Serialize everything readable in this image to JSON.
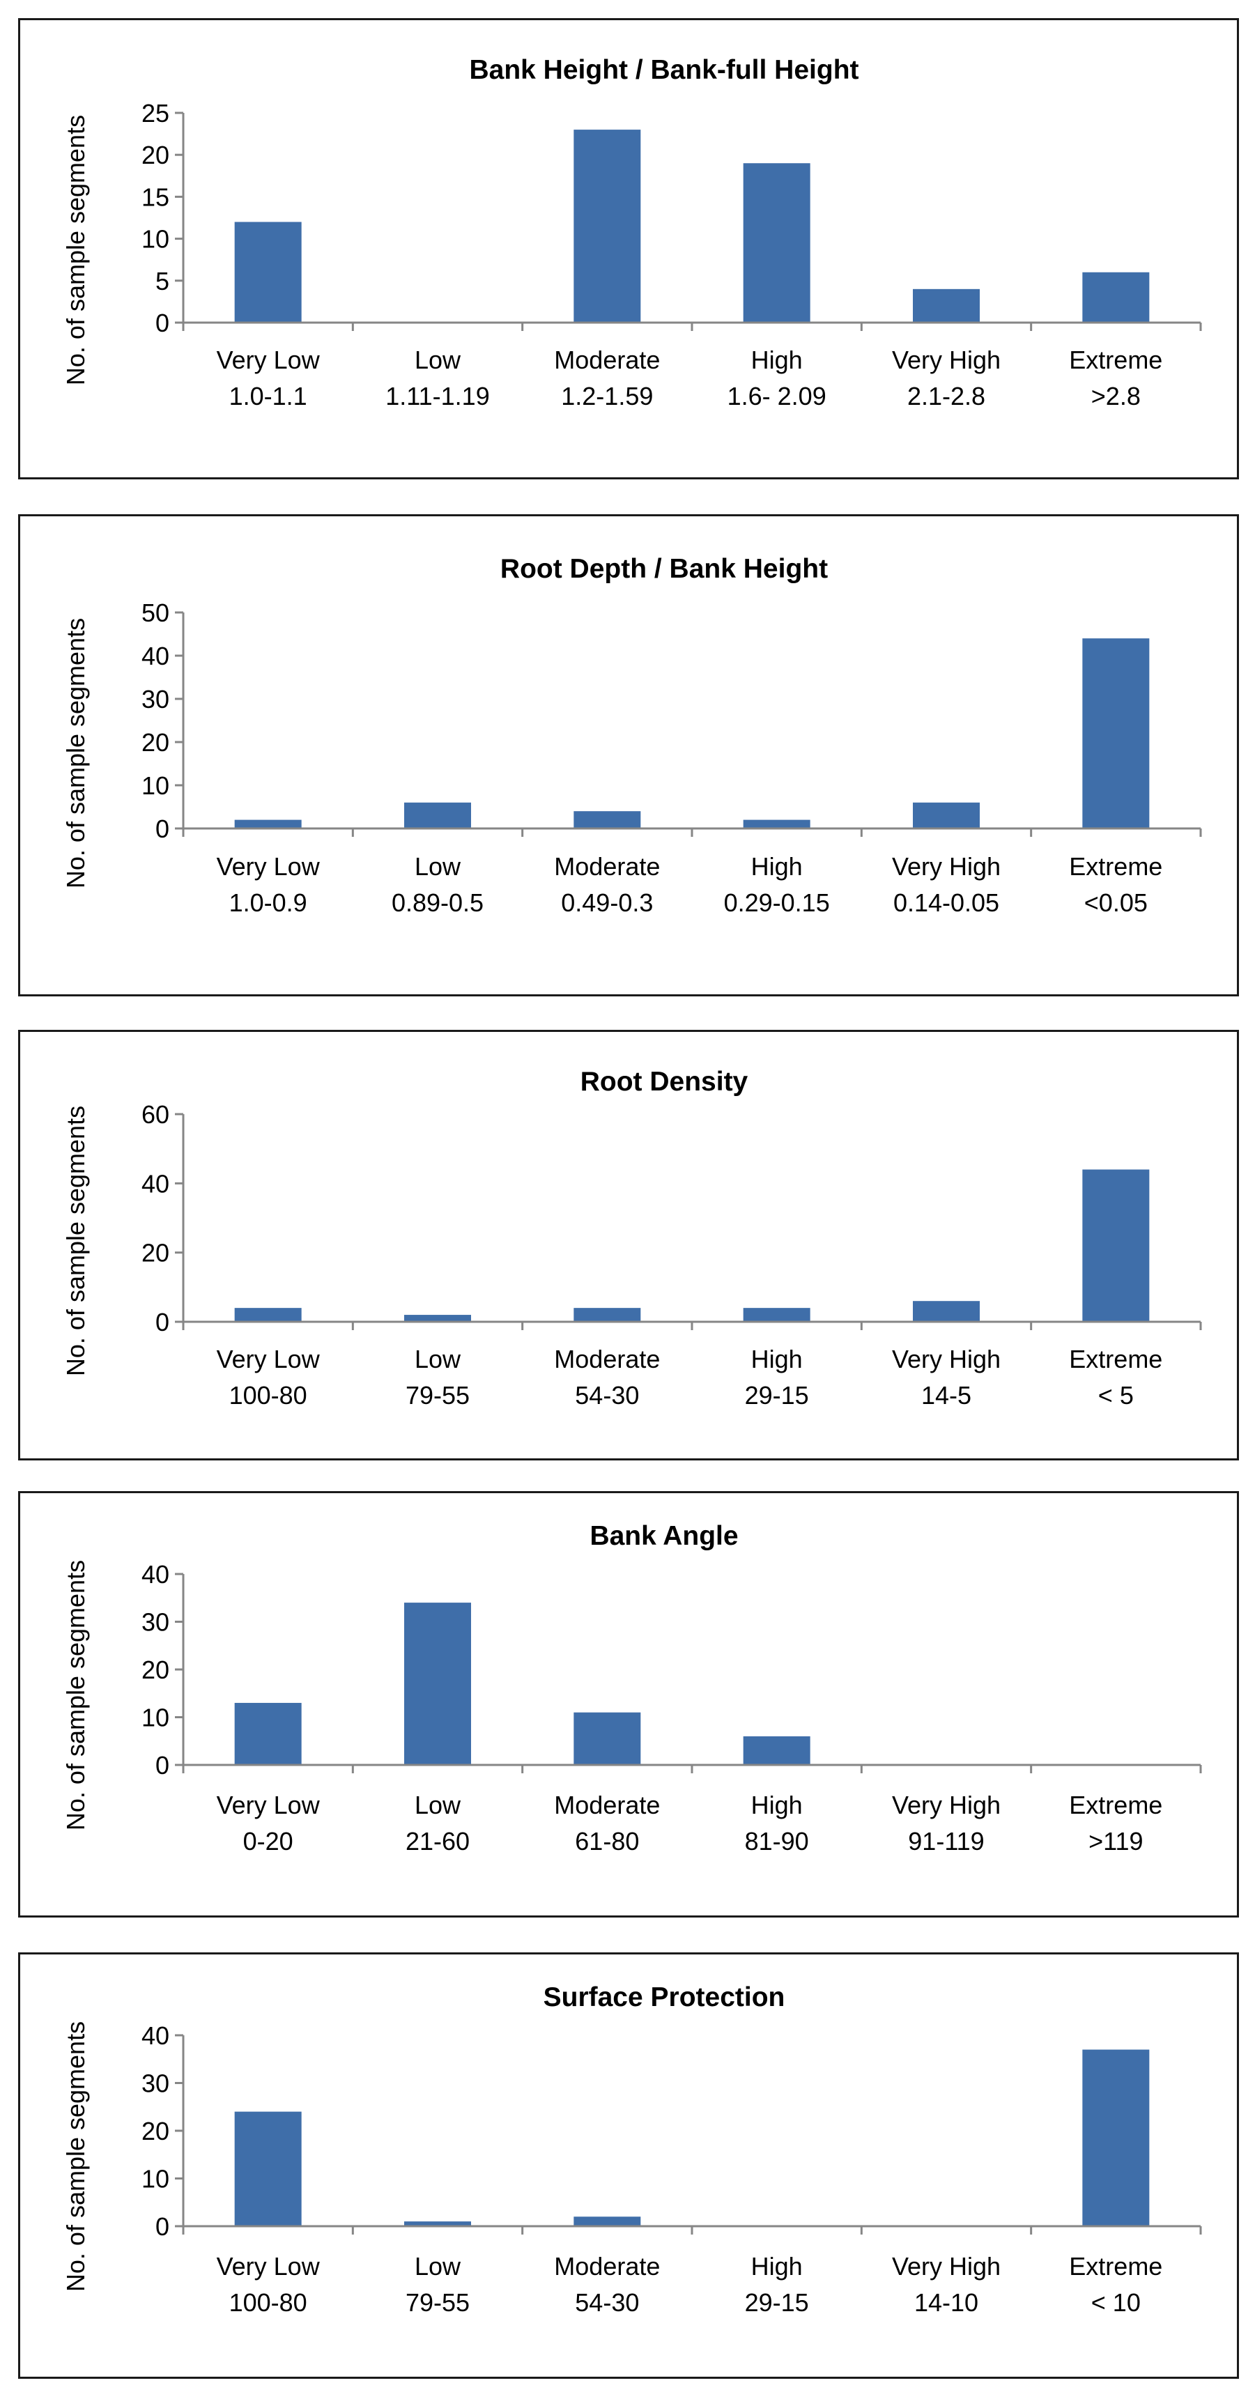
{
  "chart_data": [
    {
      "type": "bar",
      "title": "Bank Height / Bank-full Height",
      "ylabel": "No. of sample segments",
      "xlabel": "",
      "ylim": [
        0,
        25
      ],
      "yticks": [
        0,
        5,
        10,
        15,
        20,
        25
      ],
      "categories": [
        "Very Low",
        "Low",
        "Moderate",
        "High",
        "Very High",
        "Extreme"
      ],
      "ranges": [
        "1.0-1.1",
        "1.11-1.19",
        "1.2-1.59",
        "1.6- 2.09",
        "2.1-2.8",
        ">2.8"
      ],
      "values": [
        12,
        0,
        23,
        19,
        4,
        6
      ],
      "grid": false,
      "legend": "none",
      "bar_color": "#3f6ea9"
    },
    {
      "type": "bar",
      "title": "Root Depth / Bank Height",
      "ylabel": "No. of sample segments",
      "xlabel": "",
      "ylim": [
        0,
        50
      ],
      "yticks": [
        0,
        10,
        20,
        30,
        40,
        50
      ],
      "categories": [
        "Very Low",
        "Low",
        "Moderate",
        "High",
        "Very High",
        "Extreme"
      ],
      "ranges": [
        "1.0-0.9",
        "0.89-0.5",
        "0.49-0.3",
        "0.29-0.15",
        "0.14-0.05",
        "<0.05"
      ],
      "values": [
        2,
        6,
        4,
        2,
        6,
        44
      ],
      "grid": false,
      "legend": "none",
      "bar_color": "#3f6ea9"
    },
    {
      "type": "bar",
      "title": "Root Density",
      "ylabel": "No. of sample segments",
      "xlabel": "",
      "ylim": [
        0,
        60
      ],
      "yticks": [
        0,
        20,
        40,
        60
      ],
      "categories": [
        "Very Low",
        "Low",
        "Moderate",
        "High",
        "Very High",
        "Extreme"
      ],
      "ranges": [
        "100-80",
        "79-55",
        "54-30",
        "29-15",
        "14-5",
        "< 5"
      ],
      "values": [
        4,
        2,
        4,
        4,
        6,
        44
      ],
      "grid": false,
      "legend": "none",
      "bar_color": "#3f6ea9"
    },
    {
      "type": "bar",
      "title": "Bank Angle",
      "ylabel": "No. of sample segments",
      "xlabel": "",
      "ylim": [
        0,
        40
      ],
      "yticks": [
        0,
        10,
        20,
        30,
        40
      ],
      "categories": [
        "Very Low",
        "Low",
        "Moderate",
        "High",
        "Very High",
        "Extreme"
      ],
      "ranges": [
        "0-20",
        "21-60",
        "61-80",
        "81-90",
        "91-119",
        ">119"
      ],
      "values": [
        13,
        34,
        11,
        6,
        0,
        0
      ],
      "grid": false,
      "legend": "none",
      "bar_color": "#3f6ea9"
    },
    {
      "type": "bar",
      "title": "Surface Protection",
      "ylabel": "No. of sample segments",
      "xlabel": "",
      "ylim": [
        0,
        40
      ],
      "yticks": [
        0,
        10,
        20,
        30,
        40
      ],
      "categories": [
        "Very Low",
        "Low",
        "Moderate",
        "High",
        "Very High",
        "Extreme"
      ],
      "ranges": [
        "100-80",
        "79-55",
        "54-30",
        "29-15",
        "14-10",
        "< 10"
      ],
      "values": [
        24,
        1,
        2,
        0,
        0,
        37
      ],
      "grid": false,
      "legend": "none",
      "bar_color": "#3f6ea9"
    }
  ]
}
